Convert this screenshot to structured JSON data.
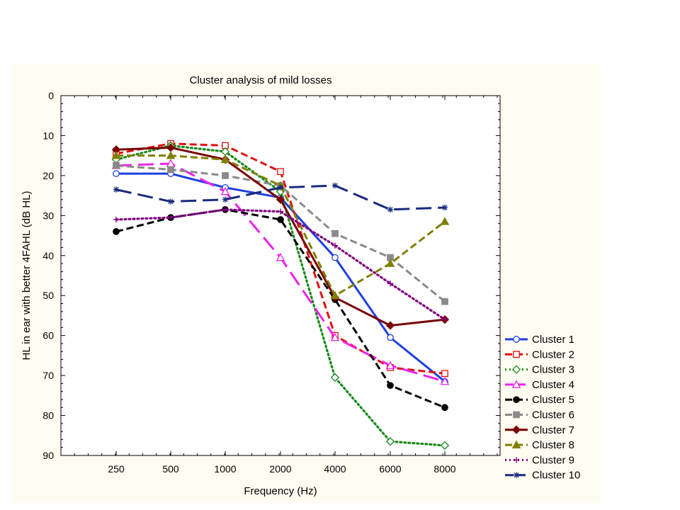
{
  "chart_data": {
    "type": "line",
    "title": "Cluster analysis of mild losses",
    "xlabel": "Frequency (Hz)",
    "ylabel": "HL in ear with better 4FAHL (dB HL)",
    "categories": [
      "250",
      "500",
      "1000",
      "2000",
      "4000",
      "6000",
      "8000"
    ],
    "ylim": [
      0,
      90
    ],
    "y_inverted": true,
    "y_ticks": [
      "0",
      "10",
      "20",
      "30",
      "40",
      "50",
      "60",
      "70",
      "80",
      "90"
    ],
    "grid": false,
    "legend_position": "bottom-right",
    "series": [
      {
        "name": "Cluster  1",
        "color": "#1f3fe0",
        "marker": "circle-open",
        "dash": "solid",
        "values": [
          19.5,
          19.5,
          23,
          25.5,
          40.5,
          60.5,
          71.5
        ]
      },
      {
        "name": "Cluster  2",
        "color": "#e01010",
        "marker": "square-open",
        "dash": "dashed",
        "values": [
          14.5,
          12,
          12.5,
          19,
          60,
          68,
          69.5
        ]
      },
      {
        "name": "Cluster  3",
        "color": "#1a8a1a",
        "marker": "diamond-open",
        "dash": "dotted",
        "values": [
          16,
          12.5,
          14,
          24,
          70.5,
          86.5,
          87.5
        ]
      },
      {
        "name": "Cluster  4",
        "color": "#ee22ee",
        "marker": "triangle-open",
        "dash": "longdash",
        "values": [
          17.5,
          17,
          24,
          40.5,
          60.5,
          67.5,
          71.5
        ]
      },
      {
        "name": "Cluster  5",
        "color": "#000000",
        "marker": "circle-filled",
        "dash": "dashed",
        "values": [
          34,
          30.5,
          28.5,
          31,
          51,
          72.5,
          78
        ]
      },
      {
        "name": "Cluster  6",
        "color": "#8a8a8a",
        "marker": "square-filled",
        "dash": "dashed",
        "values": [
          17.5,
          18.5,
          20,
          22.5,
          34.5,
          40.5,
          51.5
        ]
      },
      {
        "name": "Cluster  7",
        "color": "#7a0000",
        "marker": "diamond-filled",
        "dash": "solid",
        "values": [
          13.5,
          13,
          16,
          26,
          50.5,
          57.5,
          56
        ]
      },
      {
        "name": "Cluster  8",
        "color": "#808000",
        "marker": "triangle-filled",
        "dash": "dashed",
        "values": [
          15,
          15,
          16,
          22.5,
          50,
          42,
          31.5
        ]
      },
      {
        "name": "Cluster  9",
        "color": "#800080",
        "marker": "plus",
        "dash": "dotted",
        "values": [
          31,
          30.5,
          28.5,
          29,
          37.5,
          47,
          56
        ]
      },
      {
        "name": "Cluster  10",
        "color": "#1a2a80",
        "marker": "asterisk",
        "dash": "longdash",
        "values": [
          23.5,
          26.5,
          26,
          23,
          22.5,
          28.5,
          28
        ]
      }
    ]
  }
}
